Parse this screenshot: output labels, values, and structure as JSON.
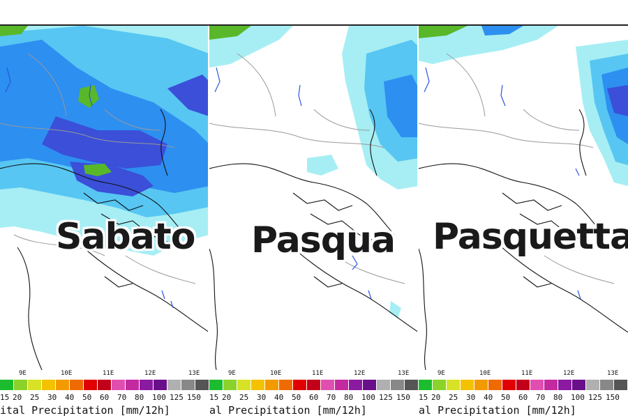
{
  "panels": [
    {
      "label": "Sabato"
    },
    {
      "label": "Pasqua"
    },
    {
      "label": "Pasquetta"
    }
  ],
  "axis_ticks": [
    "9E",
    "10E",
    "11E",
    "12E",
    "13E"
  ],
  "legend": {
    "left_edge_value": "15",
    "values": [
      "20",
      "25",
      "30",
      "40",
      "50",
      "60",
      "70",
      "80",
      "100",
      "125",
      "150"
    ],
    "colors": [
      "#1bbd2f",
      "#8bd32a",
      "#d7e227",
      "#f4c200",
      "#f39a00",
      "#ef6a00",
      "#e00000",
      "#c3001a",
      "#e04fb0",
      "#c42aa0",
      "#8a1aa0",
      "#6a0f8a",
      "#b0b0b0",
      "#888888",
      "#555555"
    ],
    "title": "al Precipitation [mm/12h]",
    "first_title": "ital Precipitation [mm/12h]"
  },
  "colors": {
    "rain_light": "#a6eef4",
    "rain_mid": "#57c6f2",
    "rain_strong": "#2d8ff0",
    "rain_heavy": "#3b4fd8",
    "rain_peak": "#58b82a",
    "coast": "#111111",
    "border": "#999999"
  }
}
